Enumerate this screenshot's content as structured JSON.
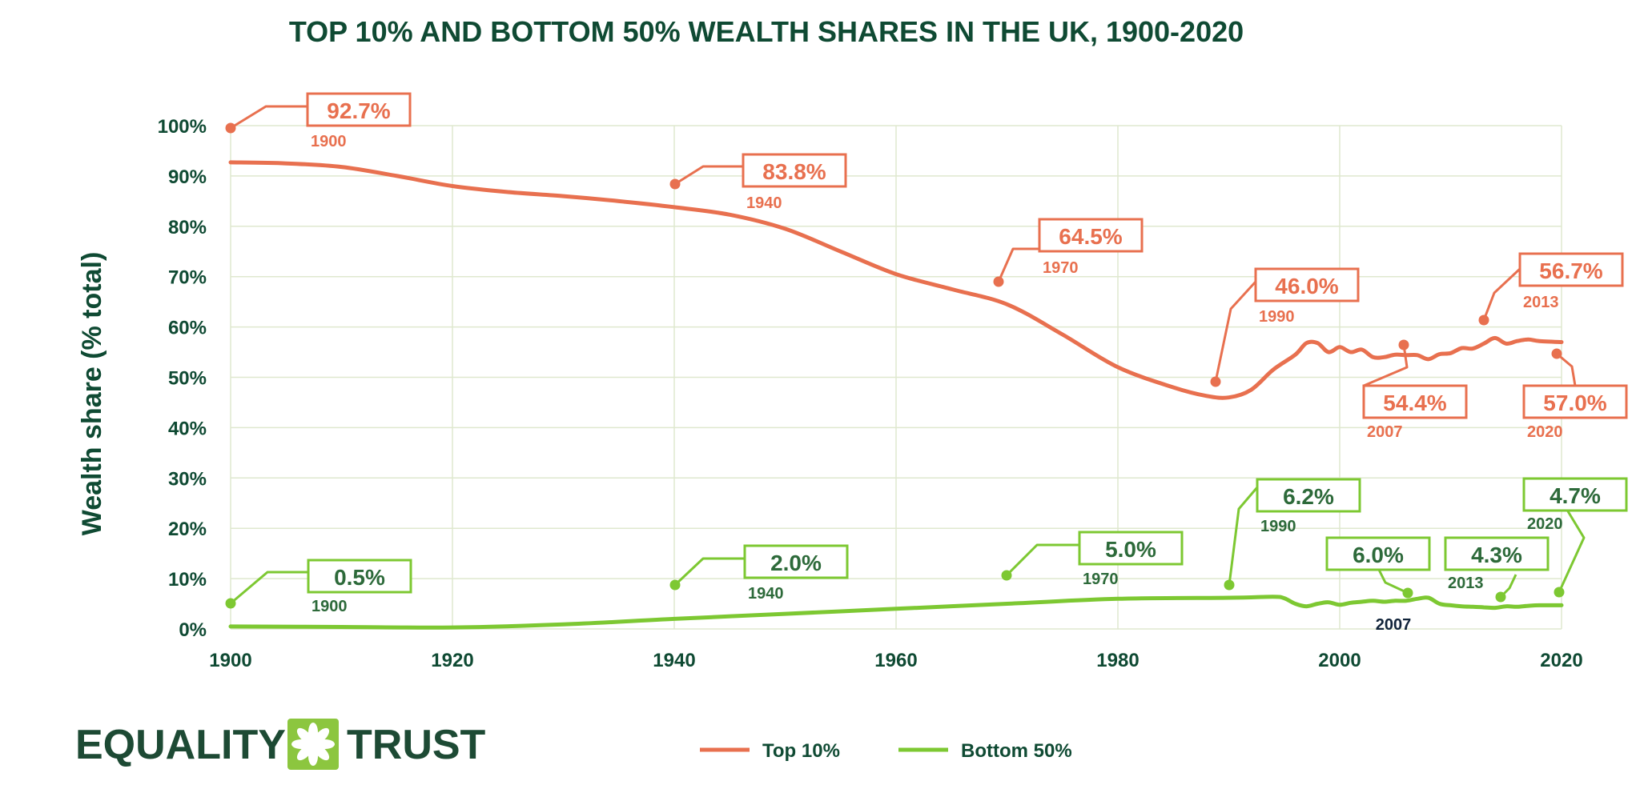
{
  "brand": {
    "logo_left": "EQUALITY",
    "logo_right": "TRUST",
    "logo_icon": "asterisk-flower-icon"
  },
  "colors": {
    "top": "#e8704f",
    "bottom": "#7dc832",
    "grid": "#dfe8cf",
    "text": "#0f4a33",
    "logo_bg": "#8cc63f"
  },
  "chart_data": {
    "type": "line",
    "title": "TOP 10% AND BOTTOM 50% WEALTH SHARES IN THE UK, 1900-2020",
    "xlabel": "",
    "ylabel": "Wealth share (% total)",
    "xlim": [
      1900,
      2020
    ],
    "ylim": [
      0,
      100
    ],
    "x_ticks": [
      "1900",
      "1920",
      "1940",
      "1960",
      "1980",
      "2000",
      "2020"
    ],
    "y_ticks": [
      "0%",
      "10%",
      "20%",
      "30%",
      "40%",
      "50%",
      "60%",
      "70%",
      "80%",
      "90%",
      "100%"
    ],
    "grid": true,
    "legend_position": "bottom-center",
    "series": [
      {
        "name": "Top 10%",
        "points": [
          [
            1900,
            92.7
          ],
          [
            1905,
            92.5
          ],
          [
            1910,
            91.8
          ],
          [
            1915,
            90.0
          ],
          [
            1920,
            88.0
          ],
          [
            1925,
            86.8
          ],
          [
            1930,
            86.0
          ],
          [
            1935,
            85.0
          ],
          [
            1940,
            83.8
          ],
          [
            1945,
            82.3
          ],
          [
            1950,
            79.5
          ],
          [
            1955,
            75.0
          ],
          [
            1960,
            70.5
          ],
          [
            1965,
            67.5
          ],
          [
            1970,
            64.5
          ],
          [
            1975,
            58.5
          ],
          [
            1980,
            52.0
          ],
          [
            1985,
            48.0
          ],
          [
            1988,
            46.3
          ],
          [
            1990,
            46.0
          ],
          [
            1992,
            47.5
          ],
          [
            1994,
            51.5
          ],
          [
            1996,
            54.5
          ],
          [
            1997,
            56.8
          ],
          [
            1998,
            56.8
          ],
          [
            1999,
            55.0
          ],
          [
            2000,
            56.0
          ],
          [
            2001,
            55.0
          ],
          [
            2002,
            55.5
          ],
          [
            2003,
            54.0
          ],
          [
            2004,
            54.0
          ],
          [
            2005,
            54.5
          ],
          [
            2006,
            54.4
          ],
          [
            2007,
            54.4
          ],
          [
            2008,
            53.6
          ],
          [
            2009,
            54.6
          ],
          [
            2010,
            54.8
          ],
          [
            2011,
            55.8
          ],
          [
            2012,
            55.7
          ],
          [
            2013,
            56.7
          ],
          [
            2014,
            57.8
          ],
          [
            2015,
            56.7
          ],
          [
            2016,
            57.2
          ],
          [
            2017,
            57.5
          ],
          [
            2018,
            57.2
          ],
          [
            2020,
            57.0
          ]
        ]
      },
      {
        "name": "Bottom 50%",
        "points": [
          [
            1900,
            0.5
          ],
          [
            1910,
            0.4
          ],
          [
            1920,
            0.3
          ],
          [
            1930,
            0.9
          ],
          [
            1940,
            2.0
          ],
          [
            1950,
            3.0
          ],
          [
            1960,
            4.0
          ],
          [
            1970,
            5.0
          ],
          [
            1980,
            6.0
          ],
          [
            1990,
            6.2
          ],
          [
            1994,
            6.4
          ],
          [
            1995,
            6.1
          ],
          [
            1996,
            5.0
          ],
          [
            1997,
            4.5
          ],
          [
            1998,
            5.0
          ],
          [
            1999,
            5.3
          ],
          [
            2000,
            4.8
          ],
          [
            2001,
            5.2
          ],
          [
            2002,
            5.4
          ],
          [
            2003,
            5.6
          ],
          [
            2004,
            5.4
          ],
          [
            2005,
            5.6
          ],
          [
            2006,
            5.6
          ],
          [
            2007,
            6.0
          ],
          [
            2008,
            6.2
          ],
          [
            2009,
            5.0
          ],
          [
            2010,
            4.7
          ],
          [
            2011,
            4.5
          ],
          [
            2012,
            4.4
          ],
          [
            2013,
            4.3
          ],
          [
            2014,
            4.2
          ],
          [
            2015,
            4.5
          ],
          [
            2016,
            4.4
          ],
          [
            2017,
            4.6
          ],
          [
            2018,
            4.7
          ],
          [
            2020,
            4.7
          ]
        ]
      }
    ],
    "annotations": [
      {
        "series": "Top 10%",
        "value": "92.7%",
        "year": "1900"
      },
      {
        "series": "Top 10%",
        "value": "83.8%",
        "year": "1940"
      },
      {
        "series": "Top 10%",
        "value": "64.5%",
        "year": "1970"
      },
      {
        "series": "Top 10%",
        "value": "46.0%",
        "year": "1990"
      },
      {
        "series": "Top 10%",
        "value": "54.4%",
        "year": "2007"
      },
      {
        "series": "Top 10%",
        "value": "56.7%",
        "year": "2013"
      },
      {
        "series": "Top 10%",
        "value": "57.0%",
        "year": "2020"
      },
      {
        "series": "Bottom 50%",
        "value": "0.5%",
        "year": "1900"
      },
      {
        "series": "Bottom 50%",
        "value": "2.0%",
        "year": "1940"
      },
      {
        "series": "Bottom 50%",
        "value": "5.0%",
        "year": "1970"
      },
      {
        "series": "Bottom 50%",
        "value": "6.2%",
        "year": "1990"
      },
      {
        "series": "Bottom 50%",
        "value": "6.0%",
        "year": "2007"
      },
      {
        "series": "Bottom 50%",
        "value": "4.3%",
        "year": "2013"
      },
      {
        "series": "Bottom 50%",
        "value": "4.7%",
        "year": "2020"
      }
    ]
  }
}
